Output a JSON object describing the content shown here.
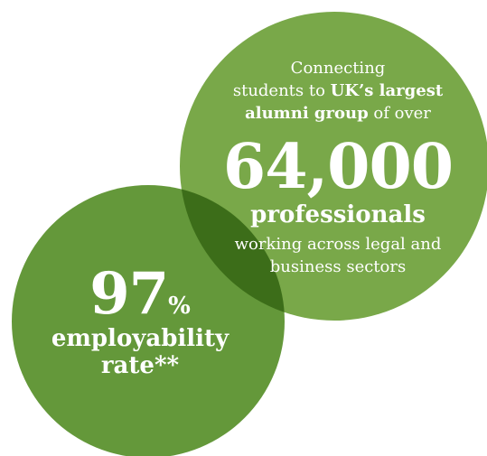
{
  "colors": {
    "bubble_large": "#79a849",
    "bubble_small": "#64983a",
    "overlap": "#3c6d19",
    "text": "#ffffff"
  },
  "alumni": {
    "line1": "Connecting",
    "line2_prefix": "students to ",
    "line2_bold": "UK’s largest",
    "line3_bold": "alumni group",
    "line3_suffix": " of over",
    "number": "64,000",
    "number_label": "professionals",
    "sectors_line1": "working across legal and",
    "sectors_line2": "business sectors"
  },
  "employability": {
    "number": "97",
    "percent_sign": "%",
    "label_line1": "employability",
    "label_line2": "rate**"
  }
}
